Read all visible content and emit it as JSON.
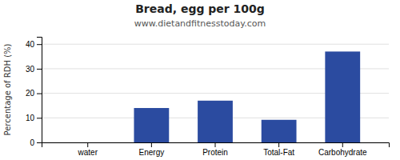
{
  "chart_data": {
    "type": "bar",
    "title": "Bread, egg per 100g",
    "subtitle": "www.dietandfitnesstoday.com",
    "categories": [
      "water",
      "Energy",
      "Protein",
      "Total-Fat",
      "Carbohydrate"
    ],
    "values": [
      0,
      14,
      17,
      9.2,
      37
    ],
    "color": "#2b4ba0",
    "ylabel": "Percentage of RDH (%)",
    "ylim": [
      0,
      43
    ],
    "yticks": [
      0,
      10,
      20,
      30,
      40
    ],
    "grid": true
  }
}
